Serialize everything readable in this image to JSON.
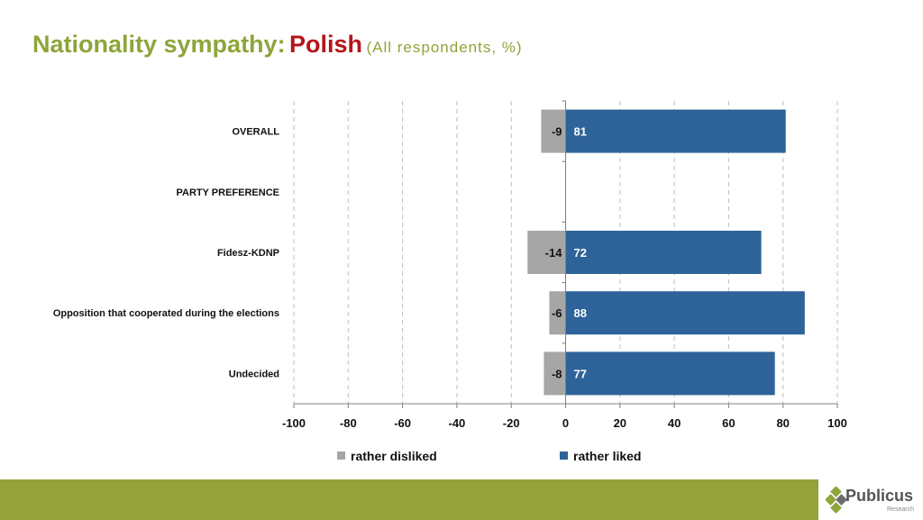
{
  "title": {
    "main": "Nationality sympathy:",
    "accent": "Polish",
    "subtitle": "(All respondents, %)"
  },
  "chart_data": {
    "type": "bar",
    "orientation": "horizontal",
    "stacked": true,
    "categories": [
      "OVERALL",
      "PARTY PREFERENCE",
      "Fidesz-KDNP",
      "Opposition that cooperated during the elections",
      "Undecided"
    ],
    "series": [
      {
        "name": "rather disliked",
        "color": "#a6a6a6",
        "values": [
          -9,
          null,
          -14,
          -6,
          -8
        ]
      },
      {
        "name": "rather liked",
        "color": "#2e6399",
        "values": [
          81,
          null,
          72,
          88,
          77
        ]
      }
    ],
    "xlim": [
      -100,
      100
    ],
    "xticks": [
      -100,
      -80,
      -60,
      -40,
      -20,
      0,
      20,
      40,
      60,
      80,
      100
    ],
    "grid": "vertical dashed",
    "legend": "bottom"
  },
  "brand": {
    "name": "Publicus",
    "tagline": "Research",
    "logo_color": "#8ea53a"
  },
  "footer_color": "#95a23c"
}
